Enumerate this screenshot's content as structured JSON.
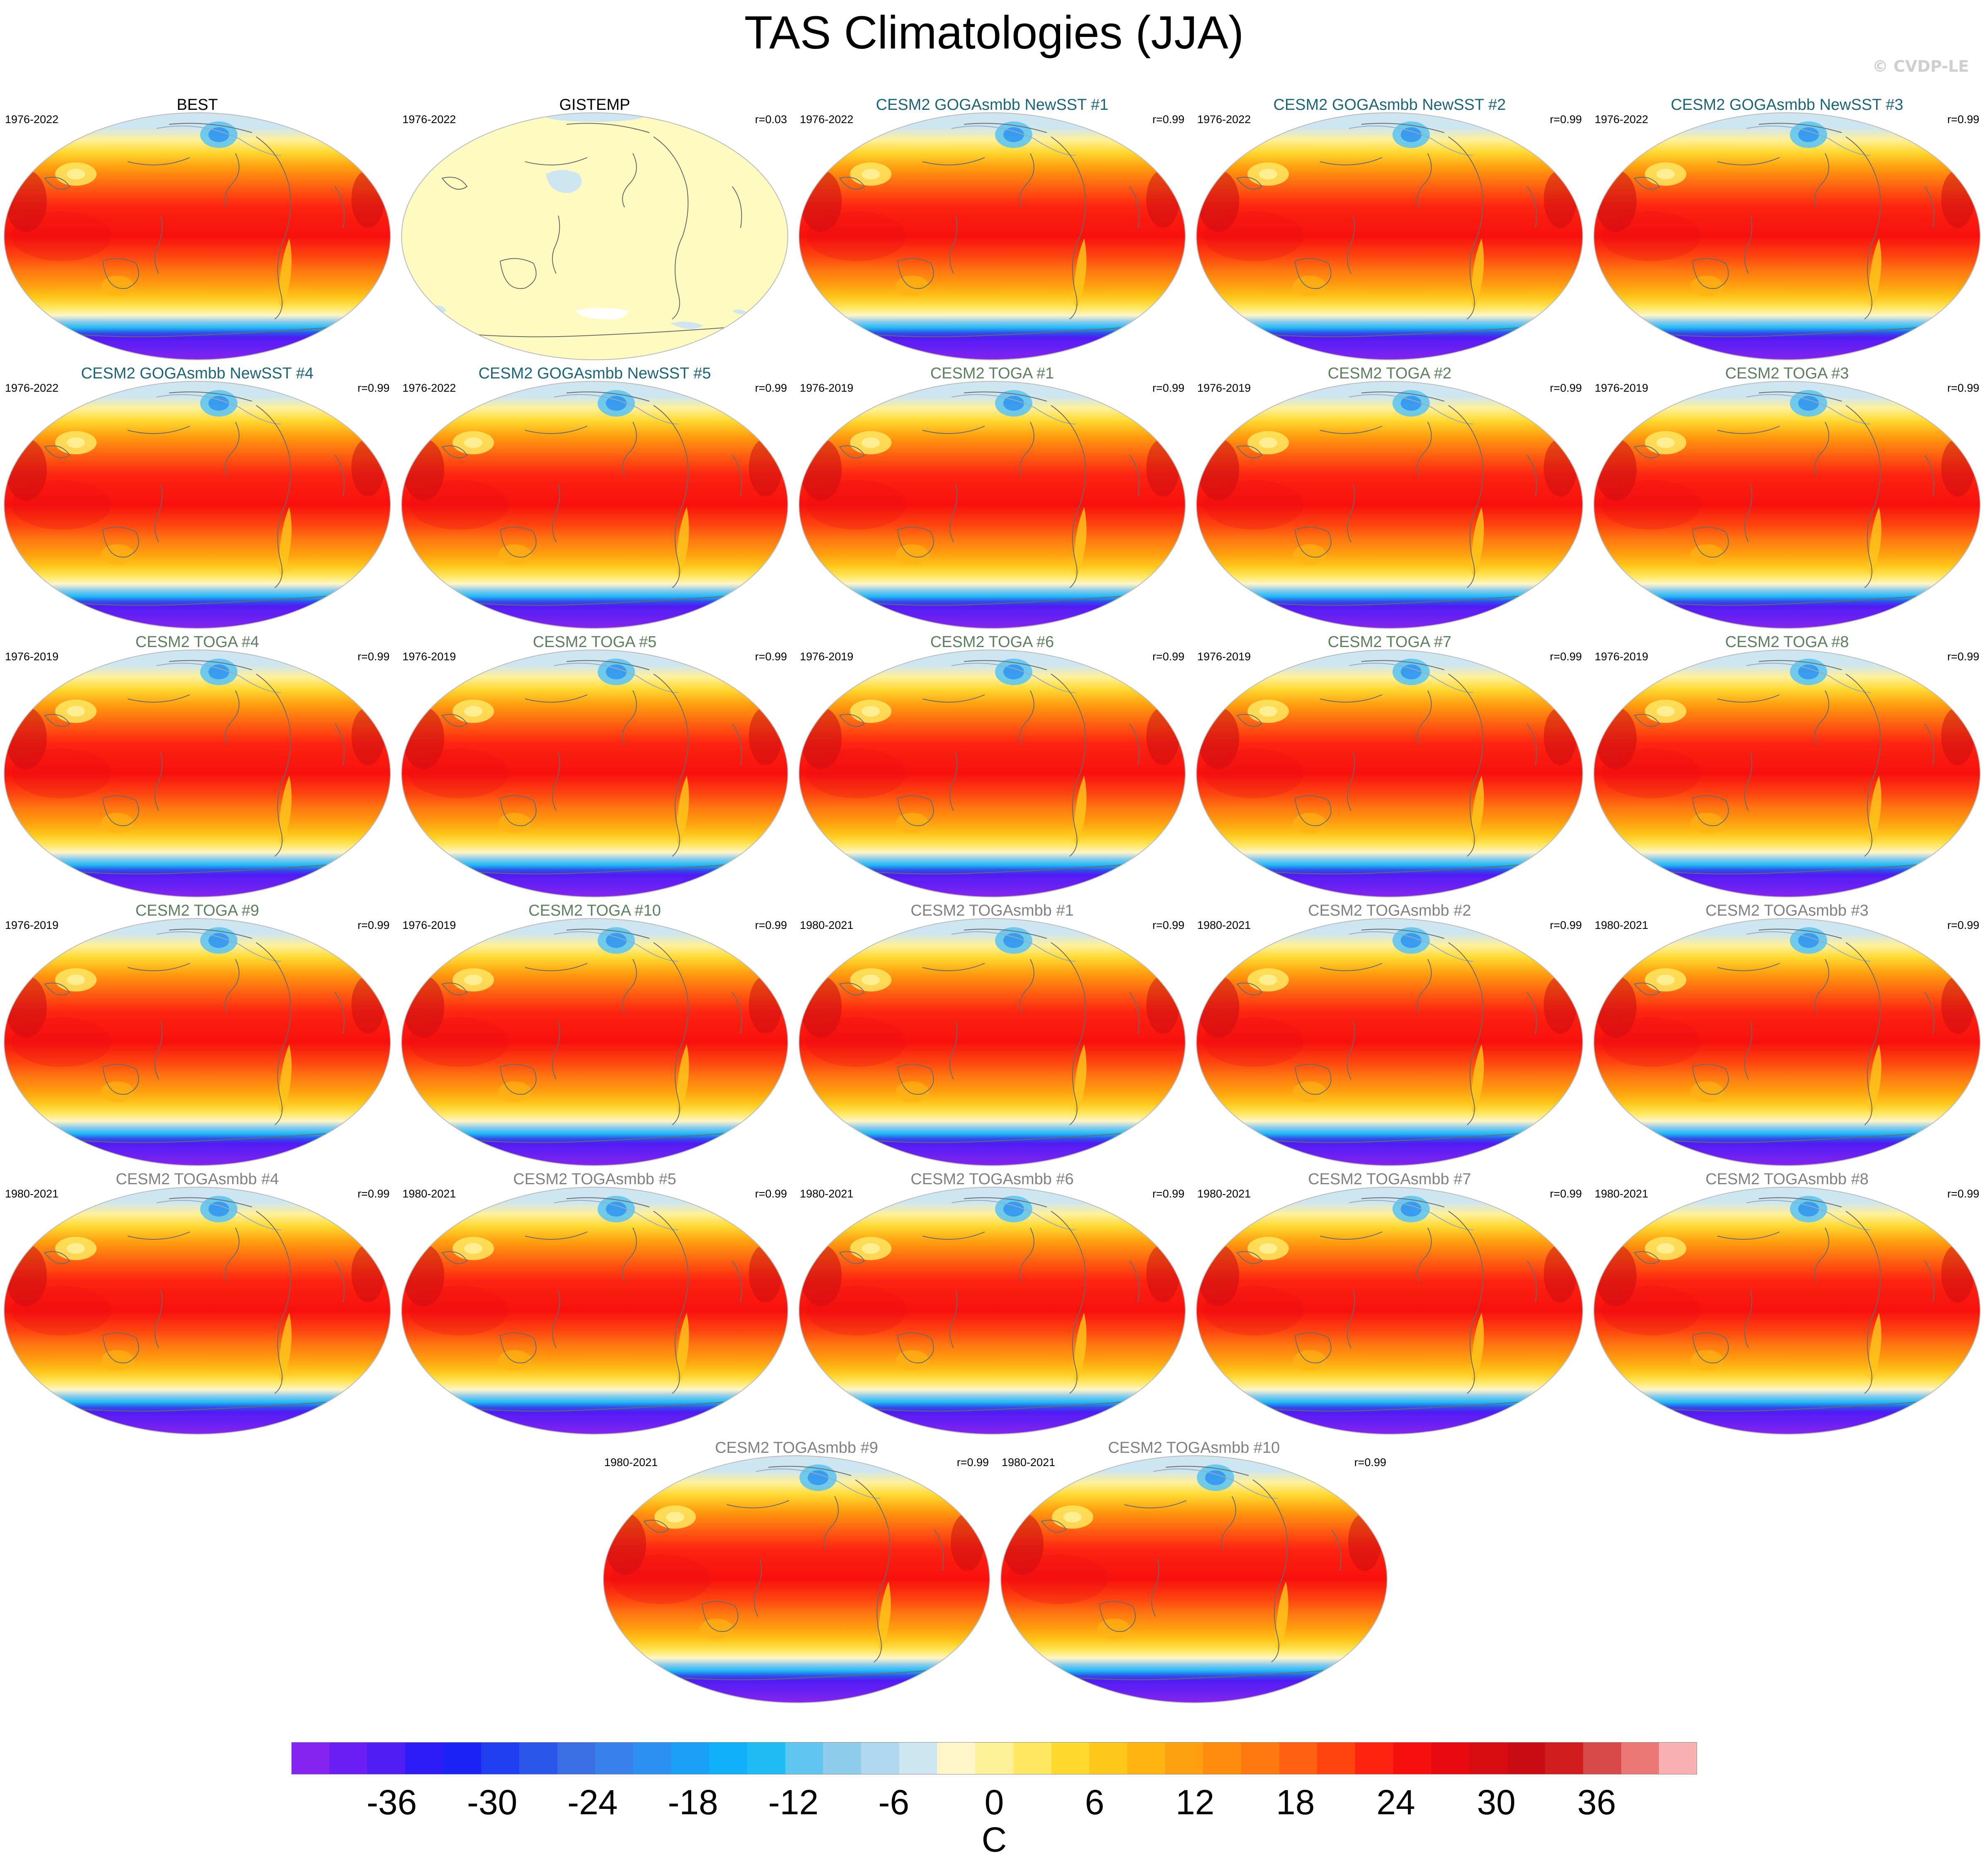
{
  "title": "TAS Climatologies (JJA)",
  "watermark": "© CVDP-LE",
  "panels": [
    {
      "title": "BEST",
      "years": "1976-2022",
      "corr": "",
      "group": "obs",
      "kind": "climo"
    },
    {
      "title": "GISTEMP",
      "years": "1976-2022",
      "corr": "r=0.03",
      "group": "obs",
      "kind": "blank"
    },
    {
      "title": "CESM2 GOGAsmbb NewSST #1",
      "years": "1976-2022",
      "corr": "r=0.99",
      "group": "goga",
      "kind": "climo"
    },
    {
      "title": "CESM2 GOGAsmbb NewSST #2",
      "years": "1976-2022",
      "corr": "r=0.99",
      "group": "goga",
      "kind": "climo"
    },
    {
      "title": "CESM2 GOGAsmbb NewSST #3",
      "years": "1976-2022",
      "corr": "r=0.99",
      "group": "goga",
      "kind": "climo"
    },
    {
      "title": "CESM2 GOGAsmbb NewSST #4",
      "years": "1976-2022",
      "corr": "r=0.99",
      "group": "goga",
      "kind": "climo"
    },
    {
      "title": "CESM2 GOGAsmbb NewSST #5",
      "years": "1976-2022",
      "corr": "r=0.99",
      "group": "goga",
      "kind": "climo"
    },
    {
      "title": "CESM2 TOGA #1",
      "years": "1976-2019",
      "corr": "r=0.99",
      "group": "toga",
      "kind": "climo"
    },
    {
      "title": "CESM2 TOGA #2",
      "years": "1976-2019",
      "corr": "r=0.99",
      "group": "toga",
      "kind": "climo"
    },
    {
      "title": "CESM2 TOGA #3",
      "years": "1976-2019",
      "corr": "r=0.99",
      "group": "toga",
      "kind": "climo"
    },
    {
      "title": "CESM2 TOGA #4",
      "years": "1976-2019",
      "corr": "r=0.99",
      "group": "toga",
      "kind": "climo"
    },
    {
      "title": "CESM2 TOGA #5",
      "years": "1976-2019",
      "corr": "r=0.99",
      "group": "toga",
      "kind": "climo"
    },
    {
      "title": "CESM2 TOGA #6",
      "years": "1976-2019",
      "corr": "r=0.99",
      "group": "toga",
      "kind": "climo"
    },
    {
      "title": "CESM2 TOGA #7",
      "years": "1976-2019",
      "corr": "r=0.99",
      "group": "toga",
      "kind": "climo"
    },
    {
      "title": "CESM2 TOGA #8",
      "years": "1976-2019",
      "corr": "r=0.99",
      "group": "toga",
      "kind": "climo"
    },
    {
      "title": "CESM2 TOGA #9",
      "years": "1976-2019",
      "corr": "r=0.99",
      "group": "toga",
      "kind": "climo"
    },
    {
      "title": "CESM2 TOGA #10",
      "years": "1976-2019",
      "corr": "r=0.99",
      "group": "toga",
      "kind": "climo"
    },
    {
      "title": "CESM2 TOGAsmbb #1",
      "years": "1980-2021",
      "corr": "r=0.99",
      "group": "togs",
      "kind": "climo"
    },
    {
      "title": "CESM2 TOGAsmbb #2",
      "years": "1980-2021",
      "corr": "r=0.99",
      "group": "togs",
      "kind": "climo"
    },
    {
      "title": "CESM2 TOGAsmbb #3",
      "years": "1980-2021",
      "corr": "r=0.99",
      "group": "togs",
      "kind": "climo"
    },
    {
      "title": "CESM2 TOGAsmbb #4",
      "years": "1980-2021",
      "corr": "r=0.99",
      "group": "togs",
      "kind": "climo"
    },
    {
      "title": "CESM2 TOGAsmbb #5",
      "years": "1980-2021",
      "corr": "r=0.99",
      "group": "togs",
      "kind": "climo"
    },
    {
      "title": "CESM2 TOGAsmbb #6",
      "years": "1980-2021",
      "corr": "r=0.99",
      "group": "togs",
      "kind": "climo"
    },
    {
      "title": "CESM2 TOGAsmbb #7",
      "years": "1980-2021",
      "corr": "r=0.99",
      "group": "togs",
      "kind": "climo"
    },
    {
      "title": "CESM2 TOGAsmbb #8",
      "years": "1980-2021",
      "corr": "r=0.99",
      "group": "togs",
      "kind": "climo"
    },
    {
      "title": "CESM2 TOGAsmbb #9",
      "years": "1980-2021",
      "corr": "r=0.99",
      "group": "togs",
      "kind": "climo"
    },
    {
      "title": "CESM2 TOGAsmbb #10",
      "years": "1980-2021",
      "corr": "r=0.99",
      "group": "togs",
      "kind": "climo"
    }
  ],
  "title_colors": {
    "obs": "#000000",
    "goga": "#1c6478",
    "toga": "#5d7f5d",
    "togs": "#808080"
  },
  "colorbar": {
    "unit": "C",
    "range": [
      -42,
      42
    ],
    "step": 2,
    "tick_labels": [
      "-36",
      "-30",
      "-24",
      "-18",
      "-12",
      "-6",
      "0",
      "6",
      "12",
      "18",
      "24",
      "30",
      "36"
    ],
    "tick_values": [
      -36,
      -30,
      -24,
      -18,
      -12,
      -6,
      0,
      6,
      12,
      18,
      24,
      30,
      36
    ],
    "colors": [
      "#8524f0",
      "#6a1ef2",
      "#4f1cf4",
      "#2e1cf7",
      "#1c24f5",
      "#1e3ef0",
      "#2a55e8",
      "#3a6ee2",
      "#3880ea",
      "#2c90f0",
      "#1aa0f5",
      "#10b0f8",
      "#20bcf5",
      "#60c5f0",
      "#90cceb",
      "#b0d8f0",
      "#cde6f2",
      "#fff5c8",
      "#fff199",
      "#ffe760",
      "#ffd830",
      "#ffc81c",
      "#ffb414",
      "#ffa010",
      "#ff8c0e",
      "#ff7810",
      "#ff6012",
      "#ff4410",
      "#fc2410",
      "#f8100e",
      "#e80c12",
      "#d80a12",
      "#c80c12",
      "#d01c1c",
      "#d84848",
      "#ec7878",
      "#f8b0b0"
    ]
  }
}
